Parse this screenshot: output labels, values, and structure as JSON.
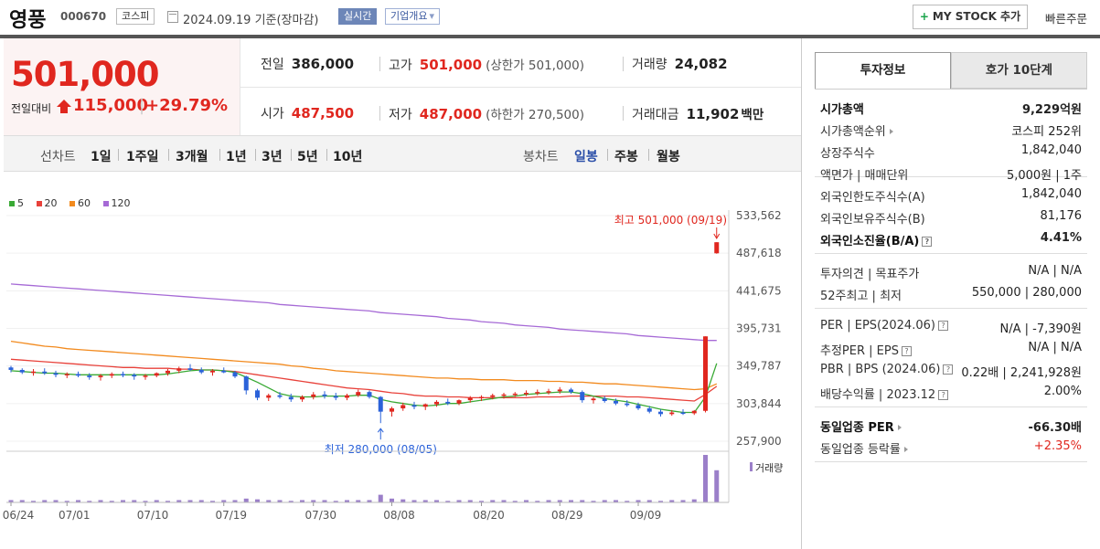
{
  "header": {
    "name": "영풍",
    "code": "000670",
    "market": "코스피",
    "date": "2024.09.19 기준(장마감)",
    "realtime": "실시간",
    "company_info": "기업개요",
    "mystock": "MY STOCK 추가",
    "quick": "빠른주문"
  },
  "price": {
    "current": "501,000",
    "compare_label": "전일대비",
    "change": "115,000",
    "change_pct": "+29.79%"
  },
  "stats": {
    "prev_label": "전일",
    "prev": "386,000",
    "high_label": "고가",
    "high": "501,000",
    "upper_limit": "(상한가 501,000)",
    "volume_label": "거래량",
    "volume": "24,082",
    "open_label": "시가",
    "open": "487,500",
    "low_label": "저가",
    "low": "487,000",
    "lower_limit": "(하한가 270,500)",
    "amount_label": "거래대금",
    "amount": "11,902",
    "amount_unit": "백만"
  },
  "range": {
    "line_label": "선차트",
    "line_opts": [
      "1일",
      "1주일",
      "3개월",
      "1년",
      "3년",
      "5년",
      "10년"
    ],
    "candle_label": "봉차트",
    "candle_opts": [
      "일봉",
      "주봉",
      "월봉"
    ],
    "active_candle": "일봉"
  },
  "colors": {
    "up": "#e0271f",
    "down": "#2b62d9",
    "ma5": "#3aaa35",
    "ma20": "#e8413a",
    "ma60": "#f28a1e",
    "ma120": "#a66ad6",
    "volume": "#9b7fc9"
  },
  "chart_data": {
    "type": "candlestick",
    "legend": [
      "5",
      "20",
      "60",
      "120"
    ],
    "y_ticks": [
      "533,562",
      "487,618",
      "441,675",
      "395,731",
      "349,787",
      "303,844",
      "257,900"
    ],
    "ylim": [
      257900,
      533562
    ],
    "x_ticks": [
      "06/24",
      "07/01",
      "07/10",
      "07/19",
      "07/30",
      "08/08",
      "08/20",
      "08/29",
      "09/09"
    ],
    "max_annotation": "최고 501,000 (09/19)",
    "min_annotation": "최저 280,000 (08/05)",
    "volume_label": "거래량",
    "candles": [
      [
        348000,
        350000,
        342000,
        345000
      ],
      [
        345000,
        347000,
        340000,
        342000
      ],
      [
        342000,
        346000,
        338000,
        343000
      ],
      [
        343000,
        347000,
        339000,
        341000
      ],
      [
        341000,
        344000,
        336000,
        339000
      ],
      [
        339000,
        342000,
        335000,
        340000
      ],
      [
        340000,
        343000,
        336000,
        338000
      ],
      [
        338000,
        341000,
        333000,
        336000
      ],
      [
        336000,
        340000,
        332000,
        338000
      ],
      [
        338000,
        342000,
        335000,
        340000
      ],
      [
        340000,
        343000,
        336000,
        339000
      ],
      [
        339000,
        341000,
        333000,
        337000
      ],
      [
        337000,
        340000,
        333000,
        338000
      ],
      [
        338000,
        342000,
        336000,
        341000
      ],
      [
        341000,
        346000,
        338000,
        344000
      ],
      [
        344000,
        349000,
        341000,
        347000
      ],
      [
        347000,
        352000,
        344000,
        345000
      ],
      [
        345000,
        348000,
        340000,
        342000
      ],
      [
        342000,
        346000,
        338000,
        344000
      ],
      [
        344000,
        348000,
        341000,
        342000
      ],
      [
        342000,
        344000,
        335000,
        337000
      ],
      [
        337000,
        338000,
        315000,
        320000
      ],
      [
        320000,
        322000,
        308000,
        311000
      ],
      [
        311000,
        316000,
        307000,
        314000
      ],
      [
        314000,
        318000,
        310000,
        312000
      ],
      [
        312000,
        316000,
        306000,
        309000
      ],
      [
        309000,
        314000,
        306000,
        312000
      ],
      [
        312000,
        318000,
        309000,
        315000
      ],
      [
        315000,
        319000,
        310000,
        313000
      ],
      [
        313000,
        317000,
        308000,
        311000
      ],
      [
        311000,
        316000,
        308000,
        314000
      ],
      [
        314000,
        321000,
        312000,
        318000
      ],
      [
        318000,
        320000,
        310000,
        312000
      ],
      [
        312000,
        313000,
        280000,
        294000
      ],
      [
        294000,
        300000,
        288000,
        298000
      ],
      [
        298000,
        305000,
        295000,
        302000
      ],
      [
        302000,
        306000,
        297000,
        300000
      ],
      [
        300000,
        304000,
        296000,
        303000
      ],
      [
        303000,
        308000,
        300000,
        306000
      ],
      [
        306000,
        310000,
        302000,
        304000
      ],
      [
        304000,
        309000,
        302000,
        308000
      ],
      [
        308000,
        313000,
        305000,
        311000
      ],
      [
        311000,
        314000,
        307000,
        312000
      ],
      [
        312000,
        316000,
        309000,
        314000
      ],
      [
        314000,
        317000,
        310000,
        315000
      ],
      [
        315000,
        318000,
        312000,
        316000
      ],
      [
        316000,
        320000,
        313000,
        317000
      ],
      [
        317000,
        321000,
        314000,
        318000
      ],
      [
        318000,
        322000,
        315000,
        319000
      ],
      [
        319000,
        324000,
        316000,
        321000
      ],
      [
        321000,
        323000,
        316000,
        318000
      ],
      [
        318000,
        320000,
        305000,
        308000
      ],
      [
        308000,
        312000,
        304000,
        310000
      ],
      [
        310000,
        313000,
        305000,
        307000
      ],
      [
        307000,
        310000,
        302000,
        304000
      ],
      [
        304000,
        308000,
        300000,
        302000
      ],
      [
        302000,
        305000,
        296000,
        298000
      ],
      [
        298000,
        301000,
        292000,
        294000
      ],
      [
        294000,
        297000,
        288000,
        291000
      ],
      [
        291000,
        296000,
        289000,
        293000
      ],
      [
        293000,
        297000,
        290000,
        292000
      ],
      [
        292000,
        296000,
        290000,
        295000
      ],
      [
        295000,
        386000,
        293000,
        386000
      ],
      [
        487500,
        501000,
        487000,
        501000
      ]
    ],
    "ma5": [
      344,
      343,
      342,
      341,
      341,
      340,
      339,
      339,
      339,
      339,
      339,
      339,
      339,
      339,
      340,
      342,
      344,
      345,
      345,
      344,
      342,
      336,
      330,
      323,
      316,
      313,
      312,
      312,
      313,
      313,
      313,
      314,
      314,
      309,
      306,
      304,
      302,
      301,
      302,
      304,
      304,
      306,
      308,
      310,
      312,
      313,
      315,
      316,
      317,
      318,
      318,
      316,
      313,
      310,
      308,
      306,
      303,
      300,
      297,
      295,
      293,
      293,
      312,
      353
    ],
    "ma20": [
      358,
      357,
      356,
      355,
      354,
      353,
      352,
      351,
      350,
      349,
      348,
      348,
      347,
      347,
      347,
      346,
      346,
      345,
      345,
      344,
      343,
      341,
      339,
      337,
      335,
      333,
      331,
      329,
      327,
      325,
      323,
      322,
      321,
      319,
      317,
      316,
      314,
      313,
      313,
      312,
      312,
      311,
      311,
      311,
      311,
      311,
      311,
      312,
      312,
      312,
      313,
      313,
      313,
      313,
      313,
      312,
      312,
      311,
      310,
      309,
      308,
      307,
      315,
      325
    ],
    "ma60": [
      380,
      378,
      376,
      374,
      373,
      371,
      370,
      369,
      368,
      367,
      366,
      365,
      364,
      363,
      362,
      361,
      360,
      359,
      358,
      357,
      356,
      355,
      354,
      353,
      352,
      350,
      349,
      347,
      346,
      344,
      343,
      342,
      341,
      340,
      339,
      338,
      337,
      336,
      335,
      335,
      334,
      334,
      333,
      333,
      333,
      332,
      332,
      332,
      331,
      331,
      330,
      330,
      329,
      328,
      328,
      327,
      326,
      325,
      324,
      323,
      322,
      321,
      322,
      328
    ],
    "ma120": [
      450,
      449,
      448,
      447,
      446,
      445,
      444,
      443,
      442,
      441,
      440,
      439,
      438,
      437,
      436,
      435,
      434,
      433,
      432,
      431,
      430,
      429,
      428,
      427,
      425,
      424,
      423,
      422,
      421,
      420,
      419,
      418,
      417,
      415,
      414,
      413,
      412,
      411,
      410,
      408,
      407,
      406,
      404,
      403,
      402,
      400,
      399,
      398,
      397,
      395,
      394,
      393,
      392,
      391,
      390,
      389,
      387,
      386,
      385,
      384,
      383,
      382,
      381,
      381
    ],
    "volumes": [
      3,
      3,
      2,
      3,
      3,
      2,
      3,
      2,
      3,
      2,
      3,
      3,
      2,
      3,
      2,
      3,
      3,
      3,
      2,
      3,
      3,
      5,
      4,
      3,
      3,
      2,
      3,
      3,
      3,
      2,
      3,
      3,
      3,
      10,
      5,
      4,
      3,
      3,
      3,
      2,
      3,
      3,
      2,
      3,
      3,
      2,
      3,
      2,
      3,
      3,
      3,
      3,
      2,
      3,
      3,
      2,
      3,
      3,
      2,
      3,
      3,
      4,
      62,
      42
    ]
  },
  "info": {
    "tab_active": "투자정보",
    "tab_other": "호가 10단계",
    "rows1": [
      {
        "k": "시가총액",
        "v": "9,229억원",
        "bold": true
      },
      {
        "k": "시가총액순위",
        "v": "코스피 252위",
        "arrow": true
      },
      {
        "k": "상장주식수",
        "v": "1,842,040"
      },
      {
        "k": "액면가 | 매매단위",
        "v": "5,000원 | 1주"
      }
    ],
    "rows2": [
      {
        "k": "외국인한도주식수(A)",
        "v": "1,842,040"
      },
      {
        "k": "외국인보유주식수(B)",
        "v": "81,176"
      },
      {
        "k": "외국인소진율(B/A)",
        "v": "4.41%",
        "bold": true,
        "q": true
      }
    ],
    "rows3": [
      {
        "k": "투자의견 | 목표주가",
        "v": "N/A | N/A"
      },
      {
        "k": "52주최고 | 최저",
        "v": "550,000 | 280,000"
      }
    ],
    "rows4": [
      {
        "k": "PER | EPS(2024.06)",
        "v": "N/A | -7,390원",
        "q": true
      },
      {
        "k": "추정PER | EPS",
        "v": "N/A | N/A",
        "q": true
      },
      {
        "k": "PBR | BPS (2024.06)",
        "v": "0.22배 | 2,241,928원",
        "q": true
      },
      {
        "k": "배당수익률 | 2023.12",
        "v": "2.00%",
        "q": true
      }
    ],
    "rows5": [
      {
        "k": "동일업종 PER",
        "v": "-66.30배",
        "bold": true,
        "arrow": true
      },
      {
        "k": "동일업종 등락률",
        "v": "+2.35%",
        "arrow": true,
        "red": true
      }
    ]
  }
}
